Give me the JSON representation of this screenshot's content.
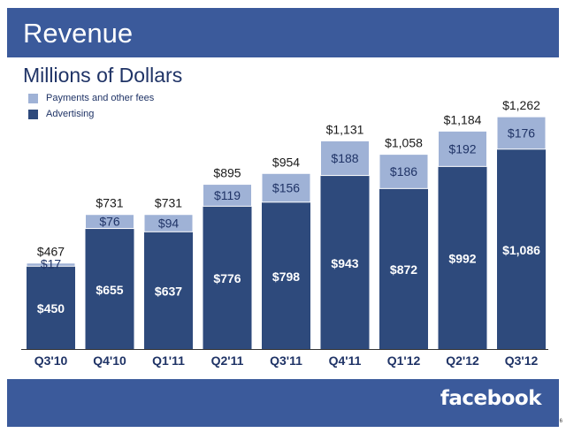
{
  "header": {
    "title": "Revenue"
  },
  "subtitle": "Millions of Dollars",
  "footer": {
    "logo": "facebook",
    "page_number": "6"
  },
  "colors": {
    "header_band": "#3b5a9b",
    "advertising": "#2e4a7c",
    "payments": "#9fb2d6",
    "axis_text": "#1f3366"
  },
  "chart_data": {
    "type": "bar",
    "stacked": true,
    "title": "Revenue",
    "subtitle": "Millions of Dollars",
    "categories": [
      "Q3'10",
      "Q4'10",
      "Q1'11",
      "Q2'11",
      "Q3'11",
      "Q4'11",
      "Q1'12",
      "Q2'12",
      "Q3'12"
    ],
    "series": [
      {
        "name": "Advertising",
        "values": [
          450,
          655,
          637,
          776,
          798,
          943,
          872,
          992,
          1086
        ],
        "labels": [
          "$450",
          "$655",
          "$637",
          "$776",
          "$798",
          "$943",
          "$872",
          "$992",
          "$1,086"
        ]
      },
      {
        "name": "Payments and other fees",
        "values": [
          17,
          76,
          94,
          119,
          156,
          188,
          186,
          192,
          176
        ],
        "labels": [
          "$17",
          "$76",
          "$94",
          "$119",
          "$156",
          "$188",
          "$186",
          "$192",
          "$176"
        ]
      }
    ],
    "totals": [
      467,
      731,
      731,
      895,
      954,
      1131,
      1058,
      1184,
      1262
    ],
    "total_labels": [
      "$467",
      "$731",
      "$731",
      "$895",
      "$954",
      "$1,131",
      "$1,058",
      "$1,184",
      "$1,262"
    ],
    "legend_placement": "top-left",
    "grid": false
  }
}
